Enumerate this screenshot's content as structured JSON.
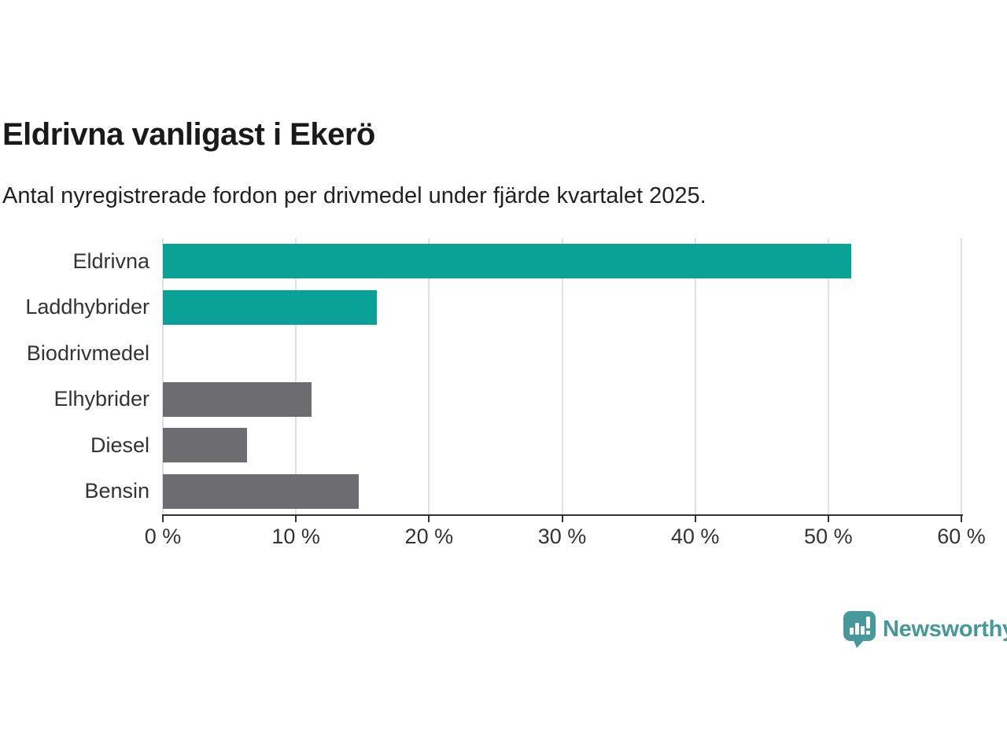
{
  "header": {
    "title": "Eldrivna vanligast i Ekerö",
    "subtitle": "Antal nyregistrerade fordon per drivmedel under fjärde kvartalet 2025."
  },
  "chart_data": {
    "type": "bar",
    "orientation": "horizontal",
    "title": "Eldrivna vanligast i Ekerö",
    "subtitle": "Antal nyregistrerade fordon per drivmedel under fjärde kvartalet 2025.",
    "categories": [
      "Eldrivna",
      "Laddhybrider",
      "Biodrivmedel",
      "Elhybrider",
      "Diesel",
      "Bensin"
    ],
    "values": [
      51.7,
      16.1,
      0,
      11.2,
      6.3,
      14.7
    ],
    "unit": "%",
    "bar_colors": [
      "#0aa296",
      "#0aa296",
      "#6d6c70",
      "#6d6c70",
      "#6d6c70",
      "#6d6c70"
    ],
    "xlabel": "",
    "ylabel": "",
    "xlim": [
      0,
      60
    ],
    "x_ticks": [
      0,
      10,
      20,
      30,
      40,
      50,
      60
    ],
    "x_tick_labels": [
      "0 %",
      "10 %",
      "20 %",
      "30 %",
      "40 %",
      "50 %",
      "60 %"
    ],
    "grid": "vertical",
    "legend": "none"
  },
  "colors": {
    "accent_teal": "#0aa296",
    "neutral_gray": "#6d6c70",
    "brand_teal": "#45999a",
    "gridline": "#e0e0e0",
    "axis": "#333333"
  },
  "footer": {
    "logo_text": "Newsworthy"
  }
}
